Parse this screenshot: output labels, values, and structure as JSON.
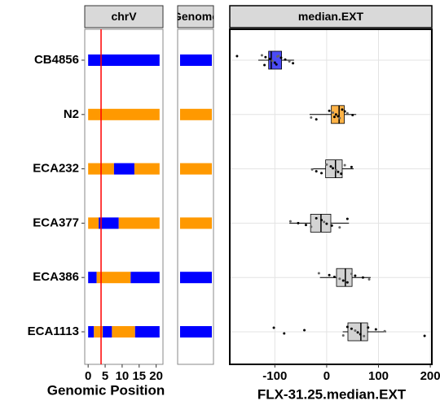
{
  "chart_data": [
    {
      "type": "segments",
      "title": "chrV",
      "xlabel": "Genomic Position",
      "categories": [
        "CB4856",
        "N2",
        "ECA232",
        "ECA377",
        "ECA386",
        "ECA1113"
      ],
      "xlim": [
        -1,
        22
      ],
      "xticks": [
        0,
        5,
        10,
        15,
        20
      ],
      "qtl": 3.8,
      "qtl_color": "#ff0000",
      "segments": [
        [
          {
            "start": 0,
            "end": 21,
            "color": "#0000ff"
          }
        ],
        [
          {
            "start": 0,
            "end": 21,
            "color": "#ff9900"
          }
        ],
        [
          {
            "start": 0,
            "end": 7.6,
            "color": "#ff9900"
          },
          {
            "start": 7.6,
            "end": 13.6,
            "color": "#0000ff"
          },
          {
            "start": 13.6,
            "end": 21,
            "color": "#ff9900"
          }
        ],
        [
          {
            "start": 0,
            "end": 3.1,
            "color": "#ff9900"
          },
          {
            "start": 3.1,
            "end": 9,
            "color": "#0000ff"
          },
          {
            "start": 9,
            "end": 21,
            "color": "#ff9900"
          }
        ],
        [
          {
            "start": 0,
            "end": 2.5,
            "color": "#0000ff"
          },
          {
            "start": 2.5,
            "end": 12.5,
            "color": "#ff9900"
          },
          {
            "start": 12.5,
            "end": 21,
            "color": "#0000ff"
          }
        ],
        [
          {
            "start": 0,
            "end": 1.7,
            "color": "#0000ff"
          },
          {
            "start": 1.7,
            "end": 4.3,
            "color": "#ff9900"
          },
          {
            "start": 4.3,
            "end": 7,
            "color": "#0000ff"
          },
          {
            "start": 7,
            "end": 13.8,
            "color": "#ff9900"
          },
          {
            "start": 13.8,
            "end": 21,
            "color": "#0000ff"
          }
        ]
      ]
    },
    {
      "type": "tiles",
      "title": "Genome",
      "colors": [
        "#0000ff",
        "#ff9900",
        "#ff9900",
        "#ff9900",
        "#0000ff",
        "#0000ff"
      ]
    },
    {
      "type": "box",
      "title": "median.EXT",
      "xlabel": "FLX-31.25.median.EXT",
      "xlim": [
        -187,
        203
      ],
      "xticks": [
        -100,
        0,
        100,
        200
      ],
      "grid": true,
      "boxes": [
        {
          "min": -132,
          "q1": -112,
          "median": -107,
          "q3": -87,
          "max": -63,
          "outliers": [
            -173
          ],
          "color": "#4b4bf5"
        },
        {
          "min": -33,
          "q1": 9,
          "median": 24,
          "q3": 34,
          "max": 57,
          "outliers": [],
          "color": "#ffb347"
        },
        {
          "min": -30,
          "q1": -2,
          "median": 17,
          "q3": 30,
          "max": 52,
          "outliers": [],
          "color": "#d3d3d3"
        },
        {
          "min": -72,
          "q1": -31,
          "median": -11,
          "q3": 8,
          "max": 43,
          "outliers": [],
          "color": "#d3d3d3"
        },
        {
          "min": -13,
          "q1": 19,
          "median": 36,
          "q3": 49,
          "max": 85,
          "outliers": [],
          "color": "#d3d3d3"
        },
        {
          "min": 31,
          "q1": 41,
          "median": 66,
          "q3": 79,
          "max": 115,
          "outliers": [
            -102,
            -82,
            -43,
            189
          ],
          "color": "#d3d3d3"
        }
      ],
      "points": [
        [
          -125,
          -118,
          -110,
          -105,
          -100,
          -97,
          -93,
          -88,
          -80,
          -72,
          -65,
          -120,
          -95
        ],
        [
          -30,
          -20,
          5,
          12,
          18,
          22,
          25,
          30,
          35,
          40,
          50,
          15
        ],
        [
          -28,
          -20,
          -10,
          0,
          8,
          12,
          18,
          22,
          28,
          35,
          48
        ],
        [
          -70,
          -55,
          -40,
          -30,
          -20,
          -10,
          -5,
          0,
          10,
          25,
          40
        ],
        [
          -15,
          5,
          15,
          25,
          32,
          40,
          48,
          55,
          70,
          82
        ],
        [
          32,
          40,
          48,
          55,
          60,
          65,
          72,
          80,
          95,
          112
        ]
      ]
    }
  ]
}
